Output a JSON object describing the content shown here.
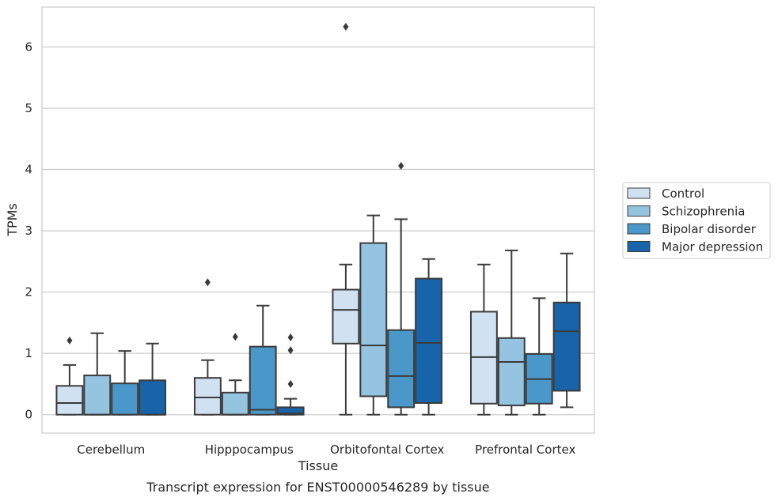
{
  "chart_data": {
    "type": "box",
    "title": "",
    "caption": "Transcript expression for ENST00000546289 by tissue",
    "xlabel": "Tissue",
    "ylabel": "TPMs",
    "ylim": [
      -0.3,
      6.65
    ],
    "yticks": [
      0,
      1,
      2,
      3,
      4,
      5,
      6
    ],
    "grid": "horizontal",
    "legend_position": "right",
    "categories": [
      "Cerebellum",
      "Hipppocampus",
      "Orbitofontal Cortex",
      "Prefrontal Cortex"
    ],
    "series": [
      {
        "name": "Control",
        "color": "#d0e1f2",
        "boxes": [
          {
            "whislo": 0,
            "q1": 0,
            "med": 0.19,
            "q3": 0.47,
            "whishi": 0.81,
            "fliers": [
              1.21
            ]
          },
          {
            "whislo": 0,
            "q1": 0,
            "med": 0.28,
            "q3": 0.6,
            "whishi": 0.89,
            "fliers": [
              2.16
            ]
          },
          {
            "whislo": 0,
            "q1": 1.16,
            "med": 1.71,
            "q3": 2.04,
            "whishi": 2.45,
            "fliers": [
              6.33
            ]
          },
          {
            "whislo": 0,
            "q1": 0.18,
            "med": 0.94,
            "q3": 1.68,
            "whishi": 2.45,
            "fliers": []
          }
        ]
      },
      {
        "name": "Schizophrenia",
        "color": "#94c4df",
        "boxes": [
          {
            "whislo": 0,
            "q1": 0,
            "med": 0,
            "q3": 0.64,
            "whishi": 1.33,
            "fliers": []
          },
          {
            "whislo": 0,
            "q1": 0,
            "med": 0,
            "q3": 0.36,
            "whishi": 0.56,
            "fliers": [
              1.27
            ]
          },
          {
            "whislo": 0,
            "q1": 0.3,
            "med": 1.13,
            "q3": 2.8,
            "whishi": 3.25,
            "fliers": []
          },
          {
            "whislo": 0,
            "q1": 0.15,
            "med": 0.86,
            "q3": 1.25,
            "whishi": 2.68,
            "fliers": []
          }
        ]
      },
      {
        "name": "Bipolar disorder",
        "color": "#4a98c9",
        "boxes": [
          {
            "whislo": 0,
            "q1": 0,
            "med": 0,
            "q3": 0.51,
            "whishi": 1.04,
            "fliers": []
          },
          {
            "whislo": 0,
            "q1": 0,
            "med": 0.08,
            "q3": 1.11,
            "whishi": 1.78,
            "fliers": []
          },
          {
            "whislo": 0,
            "q1": 0.12,
            "med": 0.63,
            "q3": 1.38,
            "whishi": 3.19,
            "fliers": [
              4.06
            ]
          },
          {
            "whislo": 0,
            "q1": 0.18,
            "med": 0.58,
            "q3": 0.99,
            "whishi": 1.9,
            "fliers": []
          }
        ]
      },
      {
        "name": "Major depression",
        "color": "#1764ab",
        "boxes": [
          {
            "whislo": 0,
            "q1": 0,
            "med": 0,
            "q3": 0.56,
            "whishi": 1.16,
            "fliers": []
          },
          {
            "whislo": 0,
            "q1": 0,
            "med": 0.02,
            "q3": 0.12,
            "whishi": 0.26,
            "fliers": [
              0.5,
              1.05,
              1.26
            ]
          },
          {
            "whislo": 0,
            "q1": 0.19,
            "med": 1.17,
            "q3": 2.22,
            "whishi": 2.54,
            "fliers": []
          },
          {
            "whislo": 0.12,
            "q1": 0.39,
            "med": 1.36,
            "q3": 1.83,
            "whishi": 2.63,
            "fliers": []
          }
        ]
      }
    ]
  }
}
